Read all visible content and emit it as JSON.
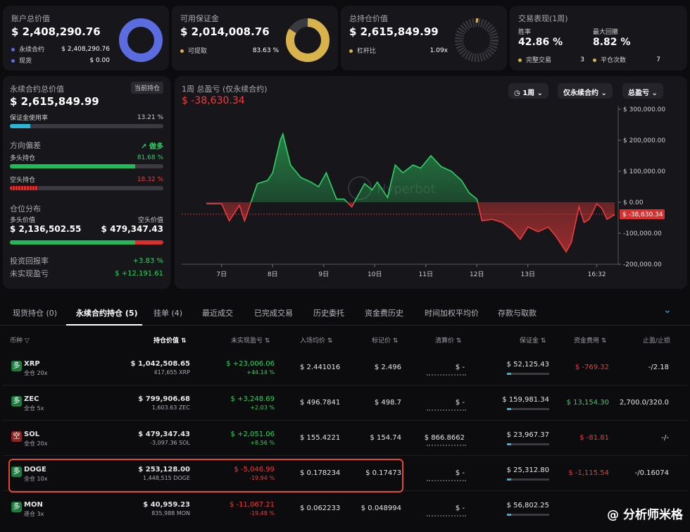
{
  "top_cards": {
    "account": {
      "title": "账户总价值",
      "value": "$ 2,408,290.76",
      "rows": [
        {
          "label": "永续合约",
          "value": "$ 2,408,290.76",
          "color": "#5b6be0"
        },
        {
          "label": "现货",
          "value": "$ 0.00",
          "color": "#5b6be0"
        }
      ]
    },
    "margin": {
      "title": "可用保证金",
      "value": "$ 2,014,008.76",
      "row": {
        "label": "可提取",
        "value": "83.63 %"
      },
      "ratio": 0.8363
    },
    "position": {
      "title": "总持仓价值",
      "value": "$ 2,615,849.99",
      "row": {
        "label": "杠杆比",
        "value": "1.09x"
      }
    },
    "performance": {
      "title": "交易表现(1周)",
      "win_label": "胜率",
      "win_value": "42.86 %",
      "dd_label": "最大回撤",
      "dd_value": "8.82 %",
      "done_label": "完整交易",
      "done_value": "3",
      "close_label": "平仓次数",
      "close_value": "7"
    }
  },
  "left_panel": {
    "title": "永续合约总价值",
    "tag": "当前持仓",
    "value": "$ 2,615,849.99",
    "margin_use": {
      "label": "保证金使用率",
      "value": "13.21 %",
      "ratio": 0.1321
    },
    "direction": {
      "label": "方向偏差",
      "bias": "做多",
      "long_label": "多头持仓",
      "long_value": "81.68 %",
      "long_ratio": 0.8168,
      "short_label": "空头持仓",
      "short_value": "18.32 %",
      "short_ratio": 0.1832
    },
    "dist": {
      "label": "仓位分布",
      "long_label": "多头价值",
      "short_label": "空头价值",
      "long_value": "$ 2,136,502.55",
      "short_value": "$ 479,347.43",
      "long_ratio": 0.8168
    },
    "roi": {
      "label": "投资回报率",
      "value": "+3.83 %"
    },
    "upnl": {
      "label": "未实现盈亏",
      "value": "$ +12,191.61"
    }
  },
  "chart_panel": {
    "title": "1周 总盈亏 (仅永续合约)",
    "value": "$ -38,630.34",
    "watermark": "Hyperbot",
    "controls": {
      "period": "1周",
      "scope": "仅永续合约",
      "metric": "总盈亏"
    },
    "current_label": "$ -38,630.34"
  },
  "chart_data": {
    "type": "area",
    "x_labels": [
      "7日",
      "8日",
      "9日",
      "10日",
      "11日",
      "12日",
      "13日",
      "16:32"
    ],
    "y_ticks": [
      "$ 300,000.00",
      "$ 200,000.00",
      "$ 100,000.00",
      "$ 0.00",
      "-100,000.00",
      "-200,000.00"
    ],
    "ylim": [
      -200000,
      300000
    ],
    "xlim": [
      0,
      7.7
    ],
    "points": [
      [
        -0.3,
        -5000
      ],
      [
        0,
        -5000
      ],
      [
        0.15,
        -60000
      ],
      [
        0.35,
        -10000
      ],
      [
        0.45,
        -60000
      ],
      [
        0.7,
        60000
      ],
      [
        0.9,
        70000
      ],
      [
        1.0,
        95000
      ],
      [
        1.15,
        200000
      ],
      [
        1.2,
        220000
      ],
      [
        1.35,
        120000
      ],
      [
        1.55,
        80000
      ],
      [
        1.75,
        65000
      ],
      [
        1.9,
        50000
      ],
      [
        2.05,
        95000
      ],
      [
        2.25,
        10000
      ],
      [
        2.4,
        10000
      ],
      [
        2.55,
        -15000
      ],
      [
        2.8,
        60000
      ],
      [
        2.95,
        40000
      ],
      [
        3.05,
        65000
      ],
      [
        3.25,
        15000
      ],
      [
        3.4,
        120000
      ],
      [
        3.55,
        95000
      ],
      [
        3.75,
        120000
      ],
      [
        3.9,
        110000
      ],
      [
        4.1,
        150000
      ],
      [
        4.3,
        115000
      ],
      [
        4.5,
        100000
      ],
      [
        4.7,
        70000
      ],
      [
        4.85,
        30000
      ],
      [
        5.0,
        10000
      ],
      [
        5.1,
        -60000
      ],
      [
        5.3,
        -55000
      ],
      [
        5.5,
        -65000
      ],
      [
        5.7,
        -90000
      ],
      [
        5.85,
        -120000
      ],
      [
        6.0,
        -80000
      ],
      [
        6.2,
        -95000
      ],
      [
        6.4,
        -80000
      ],
      [
        6.55,
        -110000
      ],
      [
        6.75,
        -160000
      ],
      [
        6.85,
        -130000
      ],
      [
        7.0,
        -15000
      ],
      [
        7.1,
        -65000
      ],
      [
        7.2,
        -55000
      ],
      [
        7.35,
        -5000
      ],
      [
        7.45,
        -20000
      ],
      [
        7.55,
        -55000
      ],
      [
        7.7,
        -40000
      ]
    ],
    "current": -38630.34,
    "grid": false
  },
  "tabs": [
    "现货持仓 (0)",
    "永续合约持仓 (5)",
    "挂单 (4)",
    "最近成交",
    "已完成交易",
    "历史委托",
    "资金费历史",
    "时间加权平均价",
    "存款与取款"
  ],
  "columns": [
    "币种",
    "持仓价值",
    "未实现盈亏",
    "入场均价",
    "标记价",
    "清算价",
    "保证金",
    "资金费用",
    "止盈/止损"
  ],
  "positions": [
    {
      "side": "多",
      "side_color": "#1f7a3f",
      "coin": "XRP",
      "mode": "全仓 20x",
      "value": "$ 1,042,508.65",
      "qty": "417,655 XRP",
      "pnl": "$ +23,006.06",
      "pnl_pct": "+44.14 %",
      "pnl_color": "#2fd165",
      "entry": "$ 2.441016",
      "mark": "$ 2.496",
      "liq": "$ -",
      "margin": "$ 52,125.43",
      "fund": "$ -769.32",
      "fund_color": "#ef3b3b",
      "tpsl": "-/2.18"
    },
    {
      "side": "多",
      "side_color": "#1f7a3f",
      "coin": "ZEC",
      "mode": "全仓 5x",
      "value": "$ 799,906.68",
      "qty": "1,603.63 ZEC",
      "pnl": "$ +3,248.69",
      "pnl_pct": "+2.03 %",
      "pnl_color": "#2fd165",
      "entry": "$ 496.7841",
      "mark": "$ 498.7",
      "liq": "$ -",
      "margin": "$ 159,981.34",
      "fund": "$ 13,154.30",
      "fund_color": "#2fd165",
      "tpsl": "2,700.0/320.0"
    },
    {
      "side": "空",
      "side_color": "#8a2323",
      "coin": "SOL",
      "mode": "全仓 20x",
      "value": "$ 479,347.43",
      "qty": "-3,097.36 SOL",
      "pnl": "$ +2,051.06",
      "pnl_pct": "+8.56 %",
      "pnl_color": "#2fd165",
      "entry": "$ 155.4221",
      "mark": "$ 154.74",
      "liq": "$ 866.8662",
      "margin": "$ 23,967.37",
      "fund": "$ -81.81",
      "fund_color": "#ef3b3b",
      "tpsl": "-/-"
    },
    {
      "side": "多",
      "side_color": "#1f7a3f",
      "coin": "DOGE",
      "mode": "全仓 10x",
      "value": "$ 253,128.00",
      "qty": "1,448,515 DOGE",
      "pnl": "$ -5,046.99",
      "pnl_pct": "-19.94 %",
      "pnl_color": "#ef3b3b",
      "entry": "$ 0.178234",
      "mark": "$ 0.17473",
      "liq": "$ -",
      "margin": "$ 25,312.80",
      "fund": "$ -1,115.54",
      "fund_color": "#ef3b3b",
      "tpsl": "-/0.16074"
    },
    {
      "side": "多",
      "side_color": "#1f7a3f",
      "coin": "MON",
      "mode": "逐仓 3x",
      "value": "$ 40,959.23",
      "qty": "835,988 MON",
      "pnl": "$ -11,067.21",
      "pnl_pct": "-19.48 %",
      "pnl_color": "#ef3b3b",
      "entry": "$ 0.062233",
      "mark": "$ 0.048994",
      "liq": "$ -",
      "margin": "$ 56,802.25",
      "fund": "",
      "fund_color": "#ef3b3b",
      "tpsl": ""
    }
  ],
  "corner_watermark": "@ 分析师米格"
}
